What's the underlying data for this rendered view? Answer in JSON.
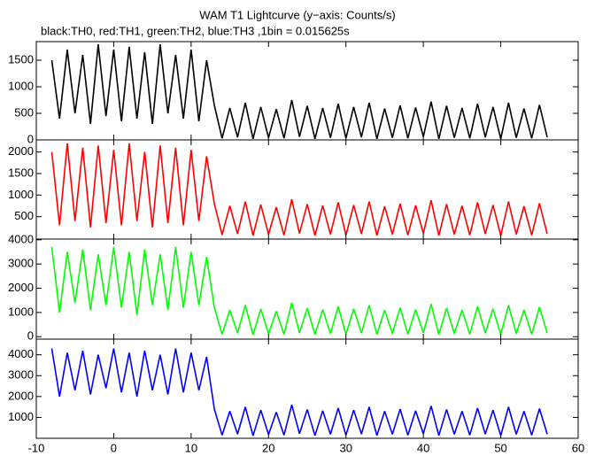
{
  "chart_data": [
    {
      "type": "line",
      "title": "WAM T1 Lightcurve (y−axis: Counts/s)",
      "subtitle": "black:TH0, red:TH1, green:TH2, blue:TH3 ,1bin = 0.015625s",
      "xlim": [
        -10,
        60
      ],
      "ylim": [
        0,
        1850
      ],
      "yticks": [
        0,
        500,
        1000,
        1500
      ],
      "series": [
        {
          "color": "#000000",
          "x": [
            -8,
            -7,
            -6,
            -5,
            -4,
            -3,
            -2,
            -1,
            0,
            1,
            2,
            3,
            4,
            5,
            6,
            7,
            8,
            9,
            10,
            11,
            12,
            13,
            14,
            15,
            16,
            17,
            18,
            19,
            20,
            21,
            22,
            23,
            24,
            25,
            26,
            27,
            28,
            29,
            30,
            31,
            32,
            33,
            34,
            35,
            36,
            37,
            38,
            39,
            40,
            41,
            42,
            43,
            44,
            45,
            46,
            47,
            48,
            49,
            50,
            51,
            52,
            53,
            54,
            55,
            56
          ],
          "values": [
            1500,
            400,
            1700,
            500,
            1600,
            300,
            1800,
            450,
            1700,
            350,
            1750,
            400,
            1650,
            300,
            1800,
            500,
            1600,
            400,
            1700,
            350,
            1500,
            650,
            30,
            600,
            50,
            700,
            20,
            620,
            40,
            580,
            30,
            750,
            60,
            640,
            20,
            600,
            40,
            680,
            30,
            620,
            50,
            700,
            20,
            590,
            40,
            650,
            30,
            610,
            60,
            720,
            20,
            640,
            40,
            600,
            30,
            680,
            50,
            620,
            20,
            700,
            40,
            590,
            30,
            660,
            50
          ]
        }
      ]
    },
    {
      "type": "line",
      "xlim": [
        -10,
        60
      ],
      "ylim": [
        -20,
        2280
      ],
      "yticks": [
        500,
        1000,
        1500,
        2000
      ],
      "series": [
        {
          "color": "#ff0000",
          "x": [
            -8,
            -7,
            -6,
            -5,
            -4,
            -3,
            -2,
            -1,
            0,
            1,
            2,
            3,
            4,
            5,
            6,
            7,
            8,
            9,
            10,
            11,
            12,
            13,
            14,
            15,
            16,
            17,
            18,
            19,
            20,
            21,
            22,
            23,
            24,
            25,
            26,
            27,
            28,
            29,
            30,
            31,
            32,
            33,
            34,
            35,
            36,
            37,
            38,
            39,
            40,
            41,
            42,
            43,
            44,
            45,
            46,
            47,
            48,
            49,
            50,
            51,
            52,
            53,
            54,
            55,
            56
          ],
          "values": [
            2000,
            300,
            2200,
            400,
            2100,
            250,
            2150,
            350,
            2050,
            300,
            2200,
            400,
            2000,
            250,
            2150,
            350,
            2100,
            300,
            2050,
            400,
            1900,
            800,
            80,
            750,
            100,
            850,
            60,
            780,
            90,
            720,
            70,
            900,
            110,
            790,
            60,
            760,
            90,
            830,
            70,
            770,
            100,
            850,
            60,
            740,
            90,
            800,
            70,
            760,
            110,
            880,
            60,
            790,
            90,
            750,
            70,
            830,
            100,
            770,
            60,
            850,
            90,
            740,
            70,
            810,
            100
          ]
        }
      ]
    },
    {
      "type": "line",
      "xlim": [
        -10,
        60
      ],
      "ylim": [
        -100,
        4030
      ],
      "yticks": [
        0,
        1000,
        2000,
        3000,
        4000
      ],
      "series": [
        {
          "color": "#00ff00",
          "x": [
            -8,
            -7,
            -6,
            -5,
            -4,
            -3,
            -2,
            -1,
            0,
            1,
            2,
            3,
            4,
            5,
            6,
            7,
            8,
            9,
            10,
            11,
            12,
            13,
            14,
            15,
            16,
            17,
            18,
            19,
            20,
            21,
            22,
            23,
            24,
            25,
            26,
            27,
            28,
            29,
            30,
            31,
            32,
            33,
            34,
            35,
            36,
            37,
            38,
            39,
            40,
            41,
            42,
            43,
            44,
            45,
            46,
            47,
            48,
            49,
            50,
            51,
            52,
            53,
            54,
            55,
            56
          ],
          "values": [
            3700,
            1000,
            3500,
            1400,
            3600,
            1100,
            3400,
            1300,
            3700,
            1200,
            3500,
            900,
            3600,
            1300,
            3400,
            1100,
            3700,
            1200,
            3500,
            1300,
            3300,
            1200,
            100,
            1100,
            150,
            1300,
            80,
            1150,
            120,
            1050,
            100,
            1400,
            160,
            1180,
            90,
            1120,
            130,
            1250,
            100,
            1150,
            150,
            1300,
            90,
            1100,
            130,
            1200,
            100,
            1120,
            160,
            1350,
            90,
            1180,
            130,
            1100,
            100,
            1250,
            150,
            1150,
            90,
            1300,
            130,
            1100,
            100,
            1220,
            150
          ]
        }
      ]
    },
    {
      "type": "line",
      "xlim": [
        -10,
        60
      ],
      "ylim": [
        0,
        4750
      ],
      "yticks": [
        1000,
        2000,
        3000,
        4000
      ],
      "xticks": [
        -10,
        0,
        10,
        20,
        30,
        40,
        50,
        60
      ],
      "series": [
        {
          "color": "#0000ff",
          "x": [
            -8,
            -7,
            -6,
            -5,
            -4,
            -3,
            -2,
            -1,
            0,
            1,
            2,
            3,
            4,
            5,
            6,
            7,
            8,
            9,
            10,
            11,
            12,
            13,
            14,
            15,
            16,
            17,
            18,
            19,
            20,
            21,
            22,
            23,
            24,
            25,
            26,
            27,
            28,
            29,
            30,
            31,
            32,
            33,
            34,
            35,
            36,
            37,
            38,
            39,
            40,
            41,
            42,
            43,
            44,
            45,
            46,
            47,
            48,
            49,
            50,
            51,
            52,
            53,
            54,
            55,
            56
          ],
          "values": [
            4300,
            2000,
            4100,
            2300,
            4200,
            2100,
            4000,
            2400,
            4300,
            2200,
            4100,
            2000,
            4200,
            2300,
            4000,
            2100,
            4300,
            2200,
            4100,
            2300,
            3900,
            1400,
            150,
            1300,
            200,
            1500,
            120,
            1350,
            180,
            1250,
            150,
            1600,
            220,
            1380,
            130,
            1320,
            190,
            1450,
            150,
            1350,
            200,
            1500,
            130,
            1300,
            190,
            1400,
            150,
            1320,
            220,
            1550,
            130,
            1380,
            190,
            1300,
            150,
            1450,
            200,
            1350,
            130,
            1500,
            190,
            1300,
            150,
            1420,
            200
          ]
        }
      ]
    }
  ]
}
